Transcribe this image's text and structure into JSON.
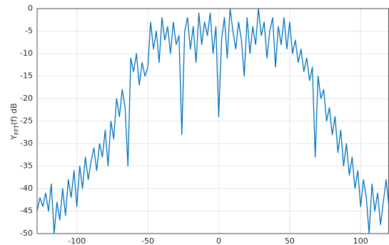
{
  "chart_data": {
    "type": "line",
    "ylabel": [
      "Y",
      "FFT",
      "(f) dB"
    ],
    "x": [
      -128,
      -126,
      -124,
      -122,
      -120,
      -118,
      -116,
      -114,
      -112,
      -110,
      -108,
      -106,
      -104,
      -102,
      -100,
      -98,
      -96,
      -94,
      -92,
      -90,
      -88,
      -86,
      -84,
      -82,
      -80,
      -78,
      -76,
      -74,
      -72,
      -70,
      -68,
      -66,
      -64,
      -62,
      -60,
      -58,
      -56,
      -54,
      -52,
      -50,
      -48,
      -46,
      -44,
      -42,
      -40,
      -38,
      -36,
      -34,
      -32,
      -30,
      -28,
      -26,
      -24,
      -22,
      -20,
      -18,
      -16,
      -14,
      -12,
      -10,
      -8,
      -6,
      -4,
      -2,
      0,
      2,
      4,
      6,
      8,
      10,
      12,
      14,
      16,
      18,
      20,
      22,
      24,
      26,
      28,
      30,
      32,
      34,
      36,
      38,
      40,
      42,
      44,
      46,
      48,
      50,
      52,
      54,
      56,
      58,
      60,
      62,
      64,
      66,
      68,
      70,
      72,
      74,
      76,
      78,
      80,
      82,
      84,
      86,
      88,
      90,
      92,
      94,
      96,
      98,
      100,
      102,
      104,
      106,
      108,
      110,
      112,
      114,
      116,
      118,
      120
    ],
    "series": [
      {
        "name": "Y",
        "color": "#0072bd",
        "values": [
          -45,
          -42,
          -44,
          -41,
          -45,
          -39,
          -50,
          -43,
          -47,
          -40,
          -46,
          -38,
          -42,
          -36,
          -44,
          -35,
          -40,
          -33,
          -38,
          -34,
          -31,
          -36,
          -30,
          -33,
          -27,
          -35,
          -25,
          -29,
          -20,
          -24,
          -18,
          -22,
          -35,
          -11,
          -14,
          -10,
          -17,
          -12,
          -15,
          -13,
          -3,
          -9,
          -5,
          -12,
          -2,
          -7,
          -4,
          -10,
          -3,
          -8,
          -6,
          -28,
          -5,
          -2,
          -9,
          -4,
          -12,
          -1,
          -8,
          -3,
          -6,
          -1,
          -10,
          -4,
          -24,
          -7,
          -2,
          -11,
          0,
          -5,
          -9,
          -3,
          -7,
          -15,
          -2,
          -10,
          -4,
          -8,
          0,
          -6,
          -3,
          -11,
          -5,
          -2,
          -13,
          -4,
          -8,
          -2,
          -9,
          -3,
          -10,
          -7,
          -12,
          -9,
          -14,
          -11,
          -16,
          -13,
          -33,
          -15,
          -20,
          -18,
          -25,
          -22,
          -28,
          -24,
          -32,
          -27,
          -35,
          -30,
          -37,
          -33,
          -40,
          -36,
          -44,
          -38,
          -42,
          -50,
          -39,
          -45,
          -41,
          -48,
          -43,
          -38,
          -44
        ]
      }
    ],
    "xlim": [
      -128,
      120
    ],
    "ylim": [
      -50,
      0
    ],
    "xticks": [
      -100,
      -50,
      0,
      50,
      100
    ],
    "yticks": [
      0,
      -5,
      -10,
      -15,
      -20,
      -25,
      -30,
      -35,
      -40,
      -45,
      -50
    ],
    "grid": true
  }
}
